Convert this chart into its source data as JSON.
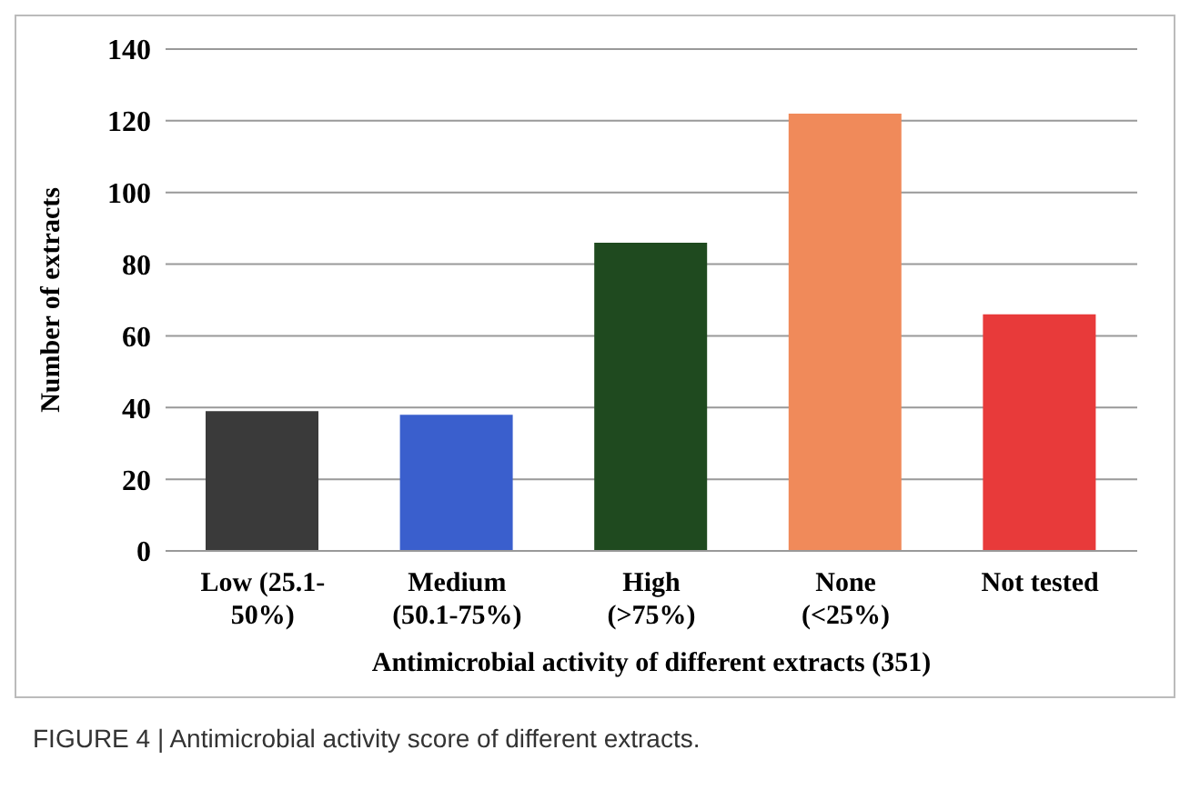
{
  "chart_data": {
    "type": "bar",
    "xlabel": "Antimicrobial activity  of different extracts (351)",
    "ylabel": "Number  of extracts",
    "categories": [
      "Low (25.1-50%)",
      "Medium (50.1-75%)",
      "High (>75%)",
      "None (<25%)",
      "Not tested"
    ],
    "values": [
      39,
      38,
      86,
      122,
      66
    ],
    "colors": [
      "#3a3a3a",
      "#3a5fcd",
      "#1f4a1f",
      "#f08a5a",
      "#e83a3a"
    ],
    "ylim": [
      0,
      140
    ],
    "yticks": [
      0,
      20,
      40,
      60,
      80,
      100,
      120,
      140
    ],
    "grid": "y",
    "annotations": [
      "FIGURE 4 | Antimicrobial activity score of different extracts."
    ]
  }
}
